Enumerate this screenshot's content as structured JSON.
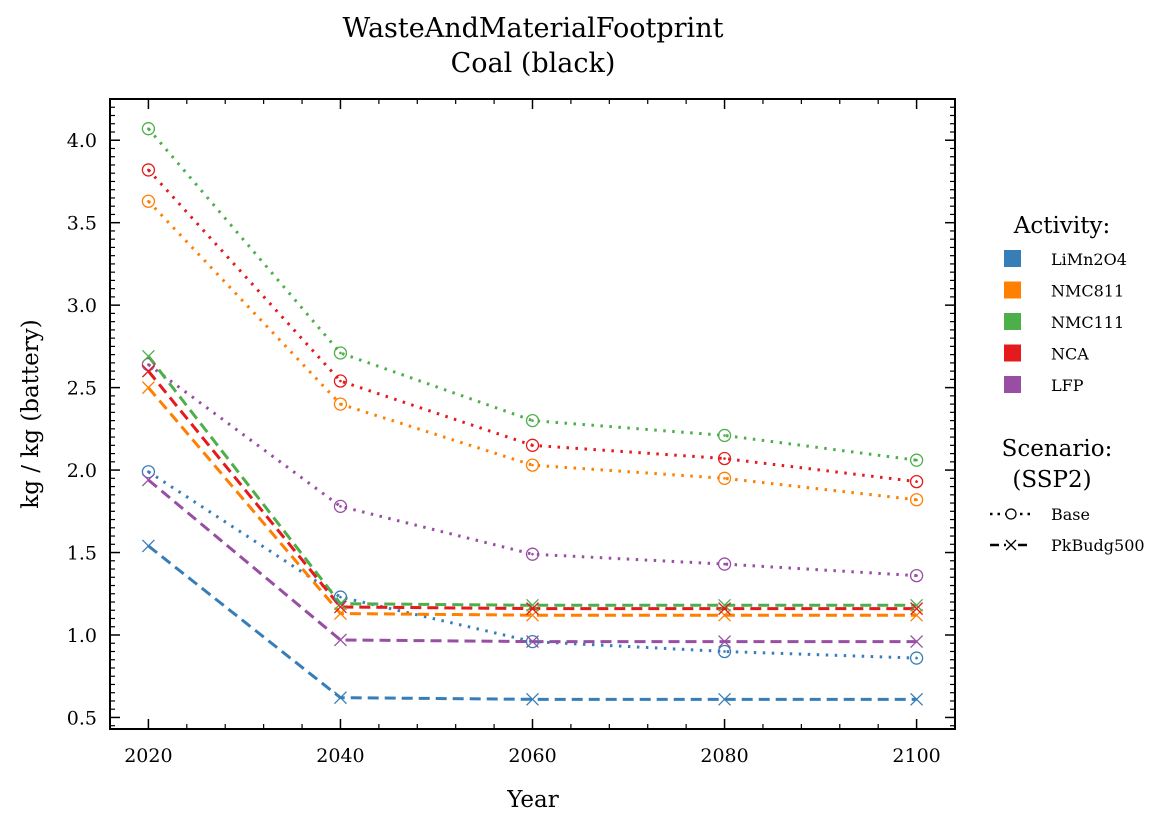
{
  "chart_data": {
    "type": "line",
    "title": "WasteAndMaterialFootprint",
    "subtitle": "Coal (black)",
    "xlabel": "Year",
    "ylabel": "kg / kg (battery)",
    "x": [
      2020,
      2040,
      2060,
      2080,
      2100
    ],
    "xlim": [
      2016,
      2104
    ],
    "ylim": [
      0.43,
      4.25
    ],
    "xticks": [
      2020,
      2040,
      2060,
      2080,
      2100
    ],
    "xtick_labels": [
      "2020",
      "2040",
      "2060",
      "2080",
      "2100"
    ],
    "yticks": [
      0.5,
      1.0,
      1.5,
      2.0,
      2.5,
      3.0,
      3.5,
      4.0
    ],
    "ytick_labels": [
      "0.5",
      "1.0",
      "1.5",
      "2.0",
      "2.5",
      "3.0",
      "3.5",
      "4.0"
    ],
    "grid": false,
    "legend_placement": "right, outside plot",
    "activity_legend_title": "Activity:",
    "scenario_legend_title_line1": "Scenario:",
    "scenario_legend_title_line2": "(SSP2)",
    "activities": [
      {
        "name": "LiMn2O4",
        "color": "#377eb8"
      },
      {
        "name": "NMC811",
        "color": "#ff7f00"
      },
      {
        "name": "NMC111",
        "color": "#4daf4a"
      },
      {
        "name": "NCA",
        "color": "#e41a1c"
      },
      {
        "name": "LFP",
        "color": "#984ea3"
      }
    ],
    "scenarios": [
      {
        "name": "Base",
        "line_style": "dotted",
        "marker": "circle"
      },
      {
        "name": "PkBudg500",
        "line_style": "dashed",
        "marker": "x"
      }
    ],
    "series": [
      {
        "activity": "LiMn2O4",
        "scenario": "Base",
        "values": [
          1.99,
          1.23,
          0.96,
          0.9,
          0.86
        ]
      },
      {
        "activity": "NMC811",
        "scenario": "Base",
        "values": [
          3.63,
          2.4,
          2.03,
          1.95,
          1.82
        ]
      },
      {
        "activity": "NMC111",
        "scenario": "Base",
        "values": [
          4.07,
          2.71,
          2.3,
          2.21,
          2.06
        ]
      },
      {
        "activity": "NCA",
        "scenario": "Base",
        "values": [
          3.82,
          2.54,
          2.15,
          2.07,
          1.93
        ]
      },
      {
        "activity": "LFP",
        "scenario": "Base",
        "values": [
          2.64,
          1.78,
          1.49,
          1.43,
          1.36
        ]
      },
      {
        "activity": "LiMn2O4",
        "scenario": "PkBudg500",
        "values": [
          1.54,
          0.62,
          0.61,
          0.61,
          0.61
        ]
      },
      {
        "activity": "NMC811",
        "scenario": "PkBudg500",
        "values": [
          2.5,
          1.13,
          1.12,
          1.12,
          1.12
        ]
      },
      {
        "activity": "NMC111",
        "scenario": "PkBudg500",
        "values": [
          2.69,
          1.19,
          1.18,
          1.18,
          1.18
        ]
      },
      {
        "activity": "NCA",
        "scenario": "PkBudg500",
        "values": [
          2.6,
          1.17,
          1.16,
          1.16,
          1.16
        ]
      },
      {
        "activity": "LFP",
        "scenario": "PkBudg500",
        "values": [
          1.94,
          0.97,
          0.96,
          0.96,
          0.96
        ]
      }
    ]
  }
}
